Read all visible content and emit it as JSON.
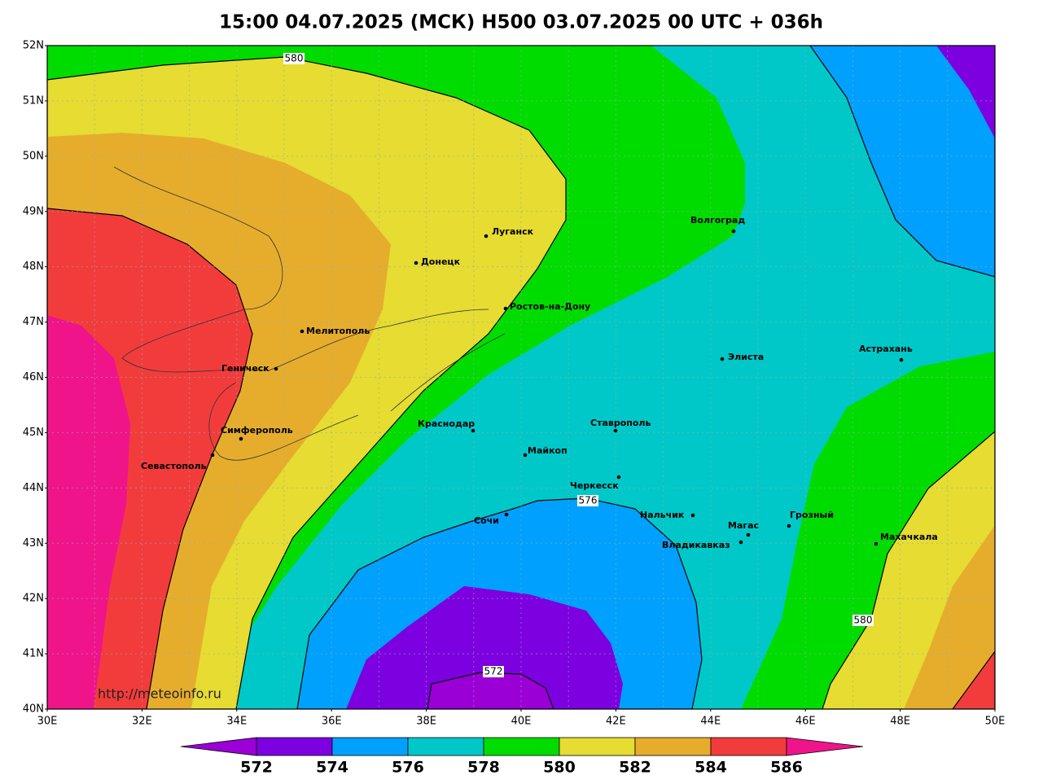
{
  "title": "15:00 04.07.2025 (МСК) H500  03.07.2025 00 UTC + 036h",
  "lat_labels": [
    "52N",
    "51N",
    "50N",
    "49N",
    "48N",
    "47N",
    "46N",
    "45N",
    "44N",
    "43N",
    "42N",
    "41N",
    "40N"
  ],
  "lon_labels": [
    "30E",
    "32E",
    "34E",
    "36E",
    "38E",
    "40E",
    "42E",
    "44E",
    "46E",
    "48E",
    "50E"
  ],
  "cities": [
    "Волгоград",
    "Луганск",
    "Донецк",
    "Ростов-на-Дону",
    "Мелитополь",
    "Геническ",
    "Элиста",
    "Астрахань",
    "Симферополь",
    "Севастополь",
    "Краснодар",
    "Ставрополь",
    "Майкоп",
    "Черкесск",
    "Сочи",
    "Нальчик",
    "Магас",
    "Владикавказ",
    "Грозный",
    "Махачкала"
  ],
  "contour_labels": [
    580,
    576,
    580,
    572
  ],
  "watermark": "http://meteoinfo.ru",
  "colorbar": {
    "ticks": [
      572,
      574,
      576,
      578,
      580,
      582,
      584,
      586
    ],
    "colors": [
      "#9a00d6",
      "#7c00e0",
      "#00a0ff",
      "#00c8c8",
      "#00dc00",
      "#e6dc32",
      "#e6ad2d",
      "#f23c3c",
      "#f0148a"
    ]
  }
}
